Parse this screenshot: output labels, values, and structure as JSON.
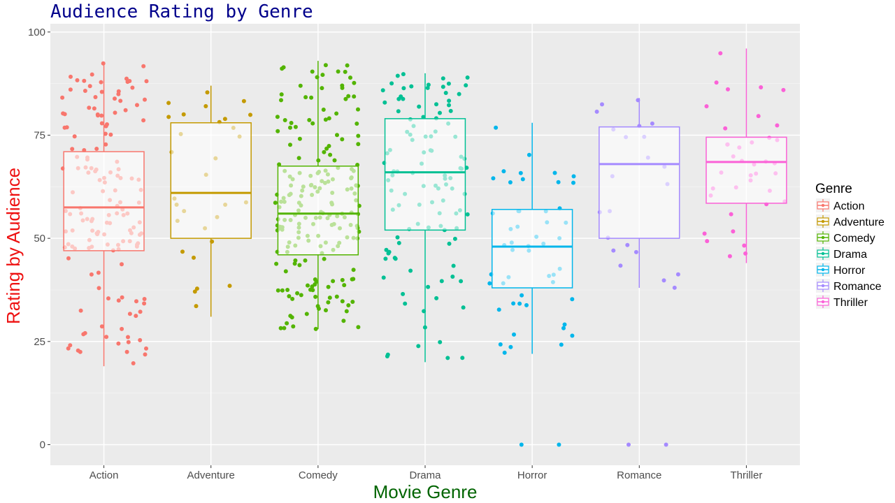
{
  "chart_data": {
    "type": "box",
    "title": "Audience Rating by Genre",
    "xlabel": "Movie Genre",
    "ylabel": "Rating by Audience",
    "ylim": [
      -5,
      102
    ],
    "yticks": [
      0,
      25,
      50,
      75,
      100
    ],
    "grid": true,
    "legend": {
      "title": "Genre",
      "position": "right"
    },
    "categories": [
      "Action",
      "Adventure",
      "Comedy",
      "Drama",
      "Horror",
      "Romance",
      "Thriller"
    ],
    "colors": [
      "#F8766D",
      "#C49A00",
      "#53B400",
      "#00C094",
      "#00B6EB",
      "#A58AFF",
      "#FB61D7"
    ],
    "boxes": [
      {
        "name": "Action",
        "min": 19,
        "q1": 47,
        "median": 57.5,
        "q3": 71,
        "max": 92.5,
        "n": 150
      },
      {
        "name": "Adventure",
        "min": 31,
        "q1": 50,
        "median": 61,
        "q3": 78,
        "max": 87,
        "n": 30
      },
      {
        "name": "Comedy",
        "min": 28,
        "q1": 46,
        "median": 56,
        "q3": 67.5,
        "max": 93,
        "n": 200
      },
      {
        "name": "Drama",
        "min": 20,
        "q1": 52,
        "median": 66,
        "q3": 79,
        "max": 90,
        "n": 110
      },
      {
        "name": "Horror",
        "min": 22,
        "q1": 38,
        "median": 48,
        "q3": 57,
        "max": 78,
        "n": 50
      },
      {
        "name": "Romance",
        "min": 38,
        "q1": 50,
        "median": 68,
        "q3": 77,
        "max": 84,
        "n": 22
      },
      {
        "name": "Thriller",
        "min": 44,
        "q1": 58.5,
        "median": 68.5,
        "q3": 74.5,
        "max": 96,
        "n": 38
      }
    ],
    "outliers": [
      {
        "category": "Horror",
        "values": [
          0,
          0
        ]
      },
      {
        "category": "Romance",
        "values": [
          0,
          0
        ]
      }
    ]
  }
}
